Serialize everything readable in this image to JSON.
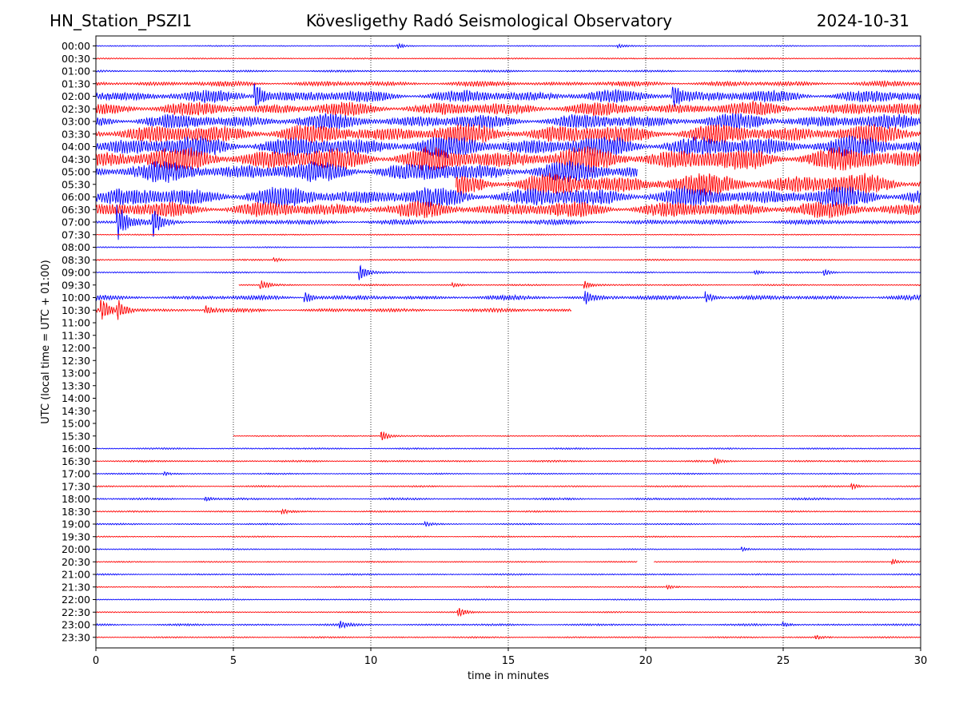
{
  "header": {
    "station": "HN_Station_PSZI1",
    "observatory": "Kövesligethy Radó Seismological Observatory",
    "date": "2024-10-31"
  },
  "chart_data": {
    "type": "line",
    "xlabel": "time in minutes",
    "ylabel": "UTC (local time = UTC + 01:00)",
    "xlim": [
      0,
      30
    ],
    "x_ticks": [
      0,
      5,
      10,
      15,
      20,
      25,
      30
    ],
    "vertical_gridlines": [
      5,
      10,
      15,
      20,
      25
    ],
    "row_labels": [
      "00:00",
      "00:30",
      "01:00",
      "01:30",
      "02:00",
      "02:30",
      "03:00",
      "03:30",
      "04:00",
      "04:30",
      "05:00",
      "05:30",
      "06:00",
      "06:30",
      "07:00",
      "07:30",
      "08:00",
      "08:30",
      "09:00",
      "09:30",
      "10:00",
      "10:30",
      "11:00",
      "11:30",
      "12:00",
      "12:30",
      "13:00",
      "13:30",
      "14:00",
      "14:30",
      "15:00",
      "15:30",
      "16:00",
      "16:30",
      "17:00",
      "17:30",
      "18:00",
      "18:30",
      "19:00",
      "19:30",
      "20:00",
      "20:30",
      "21:00",
      "21:30",
      "22:00",
      "22:30",
      "23:00",
      "23:30"
    ],
    "trace_colors": [
      "#0000ff",
      "#ff0000"
    ],
    "traces": [
      {
        "row": "00:00",
        "start": 0,
        "end": 30,
        "level": 0.05,
        "events": [
          {
            "t": 11.0,
            "a": 0.3
          },
          {
            "t": 19.0,
            "a": 0.2
          }
        ]
      },
      {
        "row": "00:30",
        "start": 0,
        "end": 30,
        "level": 0.06,
        "events": []
      },
      {
        "row": "01:00",
        "start": 0,
        "end": 30,
        "level": 0.12,
        "events": []
      },
      {
        "row": "01:30",
        "start": 0,
        "end": 30,
        "level": 0.35,
        "events": []
      },
      {
        "row": "02:00",
        "start": 0,
        "end": 30,
        "level": 0.9,
        "events": [
          {
            "t": 5.8,
            "a": 2.2
          },
          {
            "t": 21.0,
            "a": 2.0
          }
        ]
      },
      {
        "row": "02:30",
        "start": 0,
        "end": 30,
        "level": 1.0,
        "events": []
      },
      {
        "row": "03:00",
        "start": 0,
        "end": 30,
        "level": 1.1,
        "events": []
      },
      {
        "row": "03:30",
        "start": 0,
        "end": 30,
        "level": 1.5,
        "events": []
      },
      {
        "row": "04:00",
        "start": 0,
        "end": 30,
        "level": 1.6,
        "events": []
      },
      {
        "row": "04:30",
        "start": 0,
        "end": 30,
        "level": 1.8,
        "events": []
      },
      {
        "row": "05:00",
        "start": 0,
        "end": 19.7,
        "level": 1.5,
        "events": []
      },
      {
        "row": "05:30",
        "start": 13.1,
        "end": 30,
        "level": 1.7,
        "events": []
      },
      {
        "row": "06:00",
        "start": 0,
        "end": 30,
        "level": 1.5,
        "events": []
      },
      {
        "row": "06:30",
        "start": 0,
        "end": 30,
        "level": 1.2,
        "events": []
      },
      {
        "row": "07:00",
        "start": 0,
        "end": 30,
        "level": 0.35,
        "events": [
          {
            "t": 0.8,
            "a": 2.6
          },
          {
            "t": 2.1,
            "a": 1.6
          }
        ]
      },
      {
        "row": "07:30",
        "start": 0,
        "end": 30,
        "level": 0.05,
        "events": []
      },
      {
        "row": "08:00",
        "start": 0,
        "end": 30,
        "level": 0.05,
        "events": []
      },
      {
        "row": "08:30",
        "start": 0,
        "end": 30,
        "level": 0.07,
        "events": [
          {
            "t": 6.5,
            "a": 0.25
          }
        ]
      },
      {
        "row": "09:00",
        "start": 0,
        "end": 30,
        "level": 0.07,
        "events": [
          {
            "t": 9.6,
            "a": 1.2
          },
          {
            "t": 24.0,
            "a": 0.3
          },
          {
            "t": 26.5,
            "a": 0.4
          }
        ]
      },
      {
        "row": "09:30",
        "start": 5.2,
        "end": 30,
        "level": 0.08,
        "events": [
          {
            "t": 6.0,
            "a": 0.7
          },
          {
            "t": 13.0,
            "a": 0.25
          },
          {
            "t": 17.8,
            "a": 0.5
          }
        ]
      },
      {
        "row": "10:00",
        "start": 0,
        "end": 30,
        "level": 0.3,
        "events": [
          {
            "t": 7.6,
            "a": 0.9
          },
          {
            "t": 17.8,
            "a": 0.8
          },
          {
            "t": 22.2,
            "a": 0.8
          }
        ]
      },
      {
        "row": "10:30",
        "start": 0,
        "end": 17.3,
        "level": 0.25,
        "events": [
          {
            "t": 0.2,
            "a": 1.6
          },
          {
            "t": 0.8,
            "a": 1.5
          },
          {
            "t": 4.0,
            "a": 0.6
          }
        ]
      },
      {
        "row": "15:30",
        "start": 5.0,
        "end": 30,
        "level": 0.06,
        "events": [
          {
            "t": 10.4,
            "a": 0.7
          }
        ]
      },
      {
        "row": "16:00",
        "start": 0,
        "end": 30,
        "level": 0.08,
        "events": []
      },
      {
        "row": "16:30",
        "start": 0,
        "end": 30,
        "level": 0.1,
        "events": [
          {
            "t": 22.5,
            "a": 0.3
          }
        ]
      },
      {
        "row": "17:00",
        "start": 0,
        "end": 30,
        "level": 0.07,
        "events": [
          {
            "t": 2.5,
            "a": 0.2
          }
        ]
      },
      {
        "row": "17:30",
        "start": 0,
        "end": 30,
        "level": 0.08,
        "events": [
          {
            "t": 27.5,
            "a": 0.4
          }
        ]
      },
      {
        "row": "18:00",
        "start": 0,
        "end": 30,
        "level": 0.12,
        "events": [
          {
            "t": 4.0,
            "a": 0.3
          }
        ]
      },
      {
        "row": "18:30",
        "start": 0,
        "end": 30,
        "level": 0.08,
        "events": [
          {
            "t": 6.8,
            "a": 0.3
          }
        ]
      },
      {
        "row": "19:00",
        "start": 0,
        "end": 30,
        "level": 0.08,
        "events": [
          {
            "t": 12.0,
            "a": 0.25
          }
        ]
      },
      {
        "row": "19:30",
        "start": 0,
        "end": 30,
        "level": 0.06,
        "events": []
      },
      {
        "row": "20:00",
        "start": 0,
        "end": 30,
        "level": 0.06,
        "events": [
          {
            "t": 23.5,
            "a": 0.25
          }
        ]
      },
      {
        "row": "20:30",
        "start": 0,
        "end": 30,
        "level": 0.06,
        "gap": [
          19.7,
          20.3
        ],
        "events": [
          {
            "t": 29.0,
            "a": 0.3
          }
        ]
      },
      {
        "row": "21:00",
        "start": 0,
        "end": 30,
        "level": 0.08,
        "events": []
      },
      {
        "row": "21:30",
        "start": 0,
        "end": 30,
        "level": 0.06,
        "events": [
          {
            "t": 20.8,
            "a": 0.25
          }
        ]
      },
      {
        "row": "22:00",
        "start": 0,
        "end": 30,
        "level": 0.06,
        "events": []
      },
      {
        "row": "22:30",
        "start": 0,
        "end": 30,
        "level": 0.06,
        "events": [
          {
            "t": 13.2,
            "a": 0.6
          }
        ]
      },
      {
        "row": "23:00",
        "start": 0,
        "end": 30,
        "level": 0.12,
        "events": [
          {
            "t": 8.9,
            "a": 0.4
          },
          {
            "t": 25.0,
            "a": 0.3
          }
        ]
      },
      {
        "row": "23:30",
        "start": 0,
        "end": 30,
        "level": 0.08,
        "events": [
          {
            "t": 26.2,
            "a": 0.3
          }
        ]
      }
    ]
  }
}
